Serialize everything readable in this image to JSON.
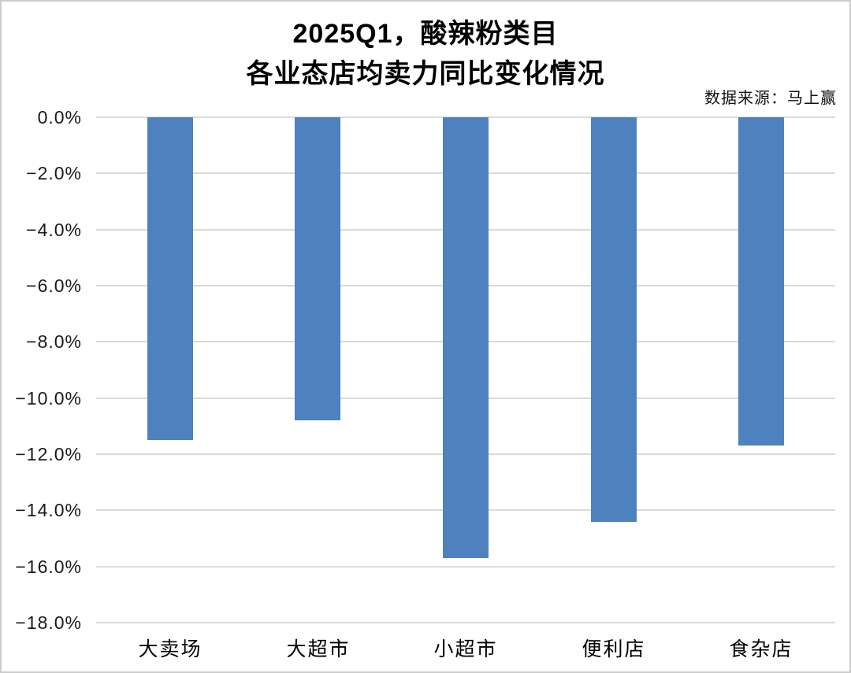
{
  "chart_data": {
    "type": "bar",
    "title_lines": [
      "2025Q1，酸辣粉类目",
      "各业态店均卖力同比变化情况"
    ],
    "source_note": "数据来源：马上赢",
    "categories": [
      "大卖场",
      "大超市",
      "小超市",
      "便利店",
      "食杂店"
    ],
    "values": [
      -11.5,
      -10.8,
      -15.7,
      -14.4,
      -11.7
    ],
    "unit": "%",
    "xlabel": "",
    "ylabel": "",
    "ylim": [
      -18,
      0
    ],
    "ytick_step": 2,
    "ytick_labels": [
      "0.0%",
      "−2.0%",
      "−4.0%",
      "−6.0%",
      "−8.0%",
      "−10.0%",
      "−12.0%",
      "−14.0%",
      "−16.0%",
      "−18.0%"
    ],
    "grid": true,
    "legend": false,
    "bar_color": "#4e81bd",
    "gridline_color": "#dadada",
    "background_color": "#ffffff"
  }
}
